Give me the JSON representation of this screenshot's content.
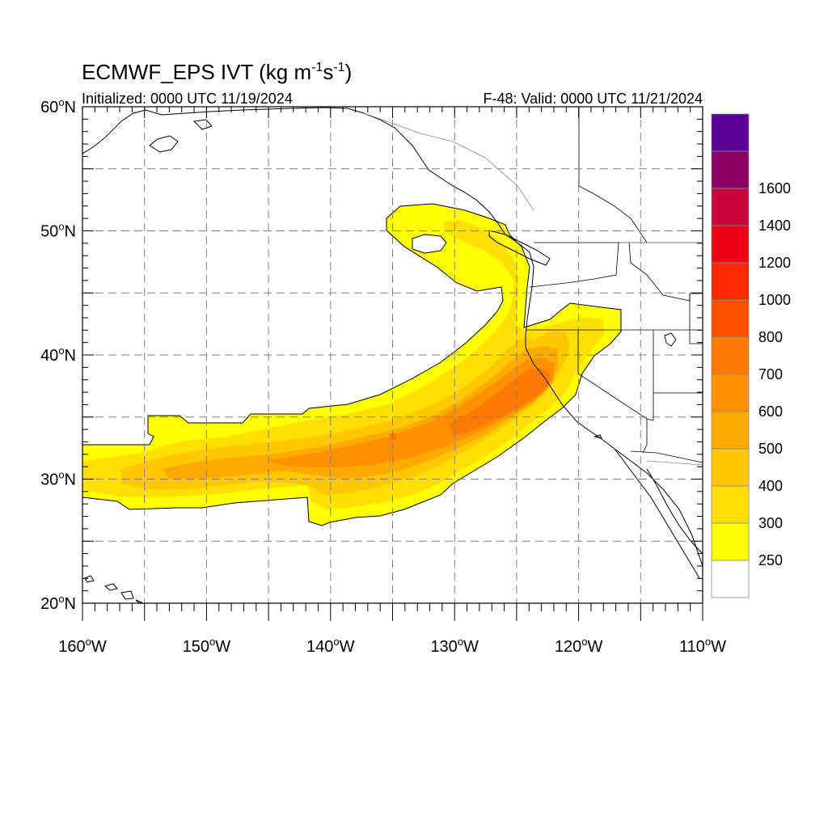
{
  "title": {
    "prefix": "ECMWF_EPS IVT (kg m",
    "sup1": "-1",
    "mid": "s",
    "sup2": "-1",
    "suffix": ")"
  },
  "initialized": "Initialized: 0000 UTC 11/19/2024",
  "valid": "F-48: Valid: 0000 UTC 11/21/2024",
  "map_extent": {
    "lon": [
      -160,
      -110
    ],
    "lat": [
      20,
      60
    ]
  },
  "lat_ticks": [
    {
      "value": 60,
      "label": "60",
      "suffix": "N"
    },
    {
      "value": 50,
      "label": "50",
      "suffix": "N"
    },
    {
      "value": 40,
      "label": "40",
      "suffix": "N"
    },
    {
      "value": 30,
      "label": "30",
      "suffix": "N"
    },
    {
      "value": 20,
      "label": "20",
      "suffix": "N"
    }
  ],
  "lon_ticks": [
    {
      "value": -160,
      "label": "160",
      "suffix": "W"
    },
    {
      "value": -150,
      "label": "150",
      "suffix": "W"
    },
    {
      "value": -140,
      "label": "140",
      "suffix": "W"
    },
    {
      "value": -130,
      "label": "130",
      "suffix": "W"
    },
    {
      "value": -120,
      "label": "120",
      "suffix": "W"
    },
    {
      "value": -110,
      "label": "110",
      "suffix": "W"
    }
  ],
  "legend": {
    "colors": [
      "#ffffff",
      "#ffff00",
      "#ffe000",
      "#ffc800",
      "#ffaa00",
      "#ff9000",
      "#ff7a00",
      "#ff5000",
      "#ff2800",
      "#ee0014",
      "#c8003c",
      "#8c0064",
      "#5a0096"
    ],
    "labels": [
      "250",
      "300",
      "400",
      "500",
      "600",
      "700",
      "800",
      "1000",
      "1200",
      "1400",
      "1600"
    ]
  },
  "palette": {
    "fill_250": "#ffff00",
    "fill_300": "#ffe000",
    "fill_400": "#ffc800",
    "fill_500": "#ffaa00",
    "fill_600": "#ff9000",
    "fill_700": "#ff7a00",
    "fill_800": "#ff5000",
    "coast": "#000000",
    "grid": "#808080"
  }
}
